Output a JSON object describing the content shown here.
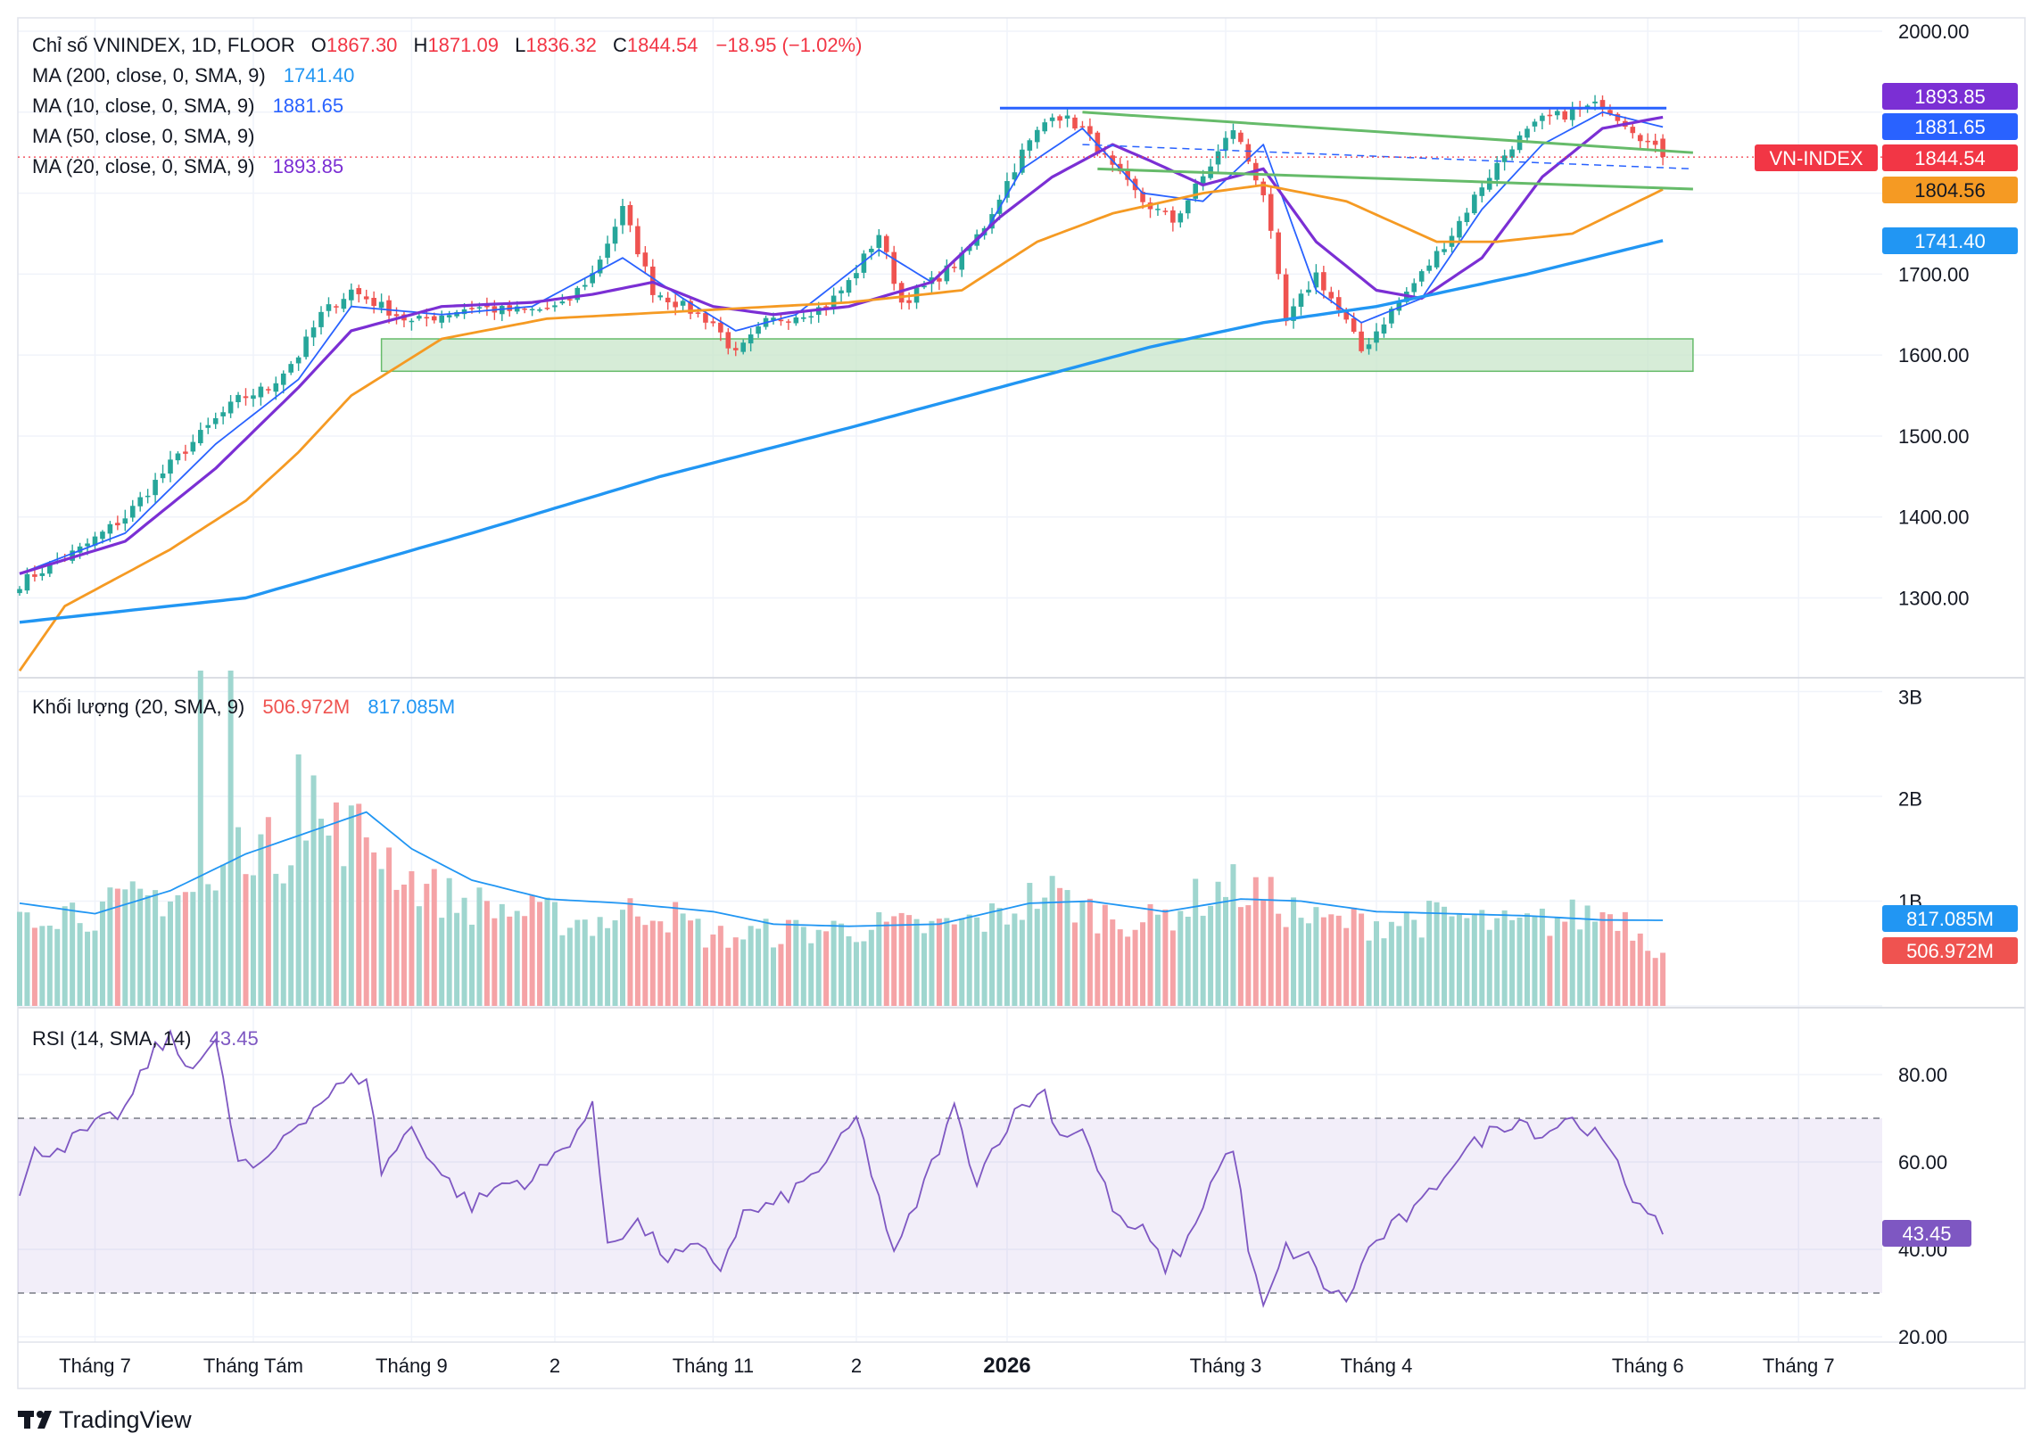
{
  "brand": {
    "logo_text": "TradingView"
  },
  "colors": {
    "up": "#26a69a",
    "down": "#ef5350",
    "vol_up": "#9fd6cf",
    "vol_down": "#f5a3a6",
    "ma10": "#2962ff",
    "ma20": "#7b2fd4",
    "ma50": "#f59a23",
    "ma200": "#2196f3",
    "vol_ma": "#2196f3",
    "rsi": "#7e57c2",
    "trend_blue": "#2962ff",
    "trend_green": "#66bb6a",
    "support_zone": "#c8e6c9",
    "vnindex_label": "#f23645",
    "last_price": "#f23645"
  },
  "legend": {
    "main": {
      "title": "Chỉ số VNINDEX, 1D, FLOOR",
      "o_label": "O",
      "o": "1867.30",
      "h_label": "H",
      "h": "1871.09",
      "l_label": "L",
      "l": "1836.32",
      "c_label": "C",
      "c": "1844.54",
      "change": "−18.95 (−1.02%)"
    },
    "ma200": {
      "label": "MA (200, close, 0, SMA, 9)",
      "value": "1741.40"
    },
    "ma10": {
      "label": "MA (10, close, 0, SMA, 9)",
      "value": "1881.65"
    },
    "ma50": {
      "label": "MA (50, close, 0, SMA, 9)"
    },
    "ma20": {
      "label": "MA (20, close, 0, SMA, 9)",
      "value": "1893.85"
    },
    "volume": {
      "label": "Khối lượng (20, SMA, 9)",
      "value1": "506.972M",
      "value2": "817.085M"
    },
    "rsi": {
      "label": "RSI (14, SMA, 14)",
      "value": "43.45"
    }
  },
  "price_tags": {
    "ma20": "1893.85",
    "ma10": "1881.65",
    "vnindex_name": "VN-INDEX",
    "last": "1844.54",
    "ma50": "1804.56",
    "ma200": "1741.40"
  },
  "volume_tags": {
    "ma": "817.085M",
    "last": "506.972M"
  },
  "rsi_tag": "43.45",
  "chart_data": [
    {
      "type": "candlestick",
      "pane": "price",
      "series_name": "VNINDEX",
      "y_ticks": [
        "2000.00",
        "1700.00",
        "1600.00",
        "1500.00",
        "1400.00",
        "1300.00"
      ],
      "ylim": [
        1210,
        2010
      ],
      "x_labels": [
        "Tháng 7",
        "Tháng Tám",
        "Tháng 9",
        "2",
        "Tháng 11",
        "2",
        "2026",
        "Tháng 3",
        "Tháng 4",
        "Tháng 6",
        "Tháng 7"
      ],
      "x_label_bars": [
        10,
        31,
        52,
        71,
        92,
        111,
        131,
        160,
        180,
        216,
        236
      ],
      "close_anchors": [
        [
          0,
          1318
        ],
        [
          4,
          1340
        ],
        [
          8,
          1360
        ],
        [
          14,
          1400
        ],
        [
          20,
          1465
        ],
        [
          26,
          1520
        ],
        [
          29,
          1545
        ],
        [
          33,
          1560
        ],
        [
          37,
          1600
        ],
        [
          40,
          1650
        ],
        [
          44,
          1680
        ],
        [
          48,
          1660
        ],
        [
          52,
          1640
        ],
        [
          56,
          1650
        ],
        [
          60,
          1660
        ],
        [
          64,
          1655
        ],
        [
          68,
          1655
        ],
        [
          72,
          1660
        ],
        [
          76,
          1700
        ],
        [
          80,
          1780
        ],
        [
          84,
          1680
        ],
        [
          88,
          1660
        ],
        [
          92,
          1640
        ],
        [
          95,
          1600
        ],
        [
          99,
          1640
        ],
        [
          103,
          1650
        ],
        [
          107,
          1660
        ],
        [
          110,
          1690
        ],
        [
          114,
          1750
        ],
        [
          117,
          1665
        ],
        [
          121,
          1690
        ],
        [
          125,
          1720
        ],
        [
          128,
          1760
        ],
        [
          133,
          1850
        ],
        [
          137,
          1900
        ],
        [
          141,
          1880
        ],
        [
          145,
          1830
        ],
        [
          149,
          1790
        ],
        [
          153,
          1765
        ],
        [
          157,
          1820
        ],
        [
          161,
          1880
        ],
        [
          165,
          1800
        ],
        [
          168,
          1640
        ],
        [
          172,
          1700
        ],
        [
          176,
          1640
        ],
        [
          178,
          1605
        ],
        [
          182,
          1655
        ],
        [
          186,
          1700
        ],
        [
          190,
          1750
        ],
        [
          194,
          1810
        ],
        [
          198,
          1860
        ],
        [
          202,
          1890
        ],
        [
          206,
          1900
        ],
        [
          210,
          1910
        ],
        [
          214,
          1880
        ],
        [
          218,
          1844.54
        ]
      ],
      "moving_averages": [
        {
          "name": "MA 10",
          "anchors": [
            [
              0,
              1330
            ],
            [
              14,
              1380
            ],
            [
              26,
              1490
            ],
            [
              37,
              1570
            ],
            [
              44,
              1660
            ],
            [
              56,
              1650
            ],
            [
              68,
              1660
            ],
            [
              76,
              1700
            ],
            [
              80,
              1720
            ],
            [
              88,
              1670
            ],
            [
              95,
              1630
            ],
            [
              103,
              1650
            ],
            [
              114,
              1730
            ],
            [
              121,
              1690
            ],
            [
              128,
              1750
            ],
            [
              133,
              1830
            ],
            [
              141,
              1880
            ],
            [
              149,
              1800
            ],
            [
              157,
              1790
            ],
            [
              165,
              1860
            ],
            [
              172,
              1680
            ],
            [
              178,
              1640
            ],
            [
              186,
              1670
            ],
            [
              194,
              1780
            ],
            [
              202,
              1860
            ],
            [
              210,
              1900
            ],
            [
              218,
              1881.65
            ]
          ]
        },
        {
          "name": "MA 20",
          "anchors": [
            [
              0,
              1330
            ],
            [
              14,
              1370
            ],
            [
              26,
              1460
            ],
            [
              37,
              1560
            ],
            [
              44,
              1630
            ],
            [
              56,
              1660
            ],
            [
              68,
              1665
            ],
            [
              76,
              1675
            ],
            [
              84,
              1690
            ],
            [
              92,
              1660
            ],
            [
              100,
              1650
            ],
            [
              110,
              1660
            ],
            [
              121,
              1690
            ],
            [
              130,
              1770
            ],
            [
              137,
              1820
            ],
            [
              145,
              1860
            ],
            [
              150,
              1840
            ],
            [
              157,
              1810
            ],
            [
              165,
              1830
            ],
            [
              172,
              1740
            ],
            [
              180,
              1680
            ],
            [
              186,
              1670
            ],
            [
              194,
              1720
            ],
            [
              202,
              1820
            ],
            [
              210,
              1880
            ],
            [
              218,
              1893.85
            ]
          ]
        },
        {
          "name": "MA 50",
          "anchors": [
            [
              0,
              1210
            ],
            [
              6,
              1290
            ],
            [
              20,
              1360
            ],
            [
              30,
              1420
            ],
            [
              37,
              1480
            ],
            [
              44,
              1550
            ],
            [
              56,
              1620
            ],
            [
              70,
              1645
            ],
            [
              90,
              1655
            ],
            [
              110,
              1665
            ],
            [
              125,
              1680
            ],
            [
              135,
              1740
            ],
            [
              145,
              1775
            ],
            [
              157,
              1800
            ],
            [
              165,
              1810
            ],
            [
              176,
              1790
            ],
            [
              188,
              1740
            ],
            [
              196,
              1740
            ],
            [
              206,
              1750
            ],
            [
              218,
              1804.56
            ]
          ]
        },
        {
          "name": "MA 200",
          "anchors": [
            [
              0,
              1270
            ],
            [
              30,
              1300
            ],
            [
              60,
              1380
            ],
            [
              85,
              1450
            ],
            [
              110,
              1510
            ],
            [
              130,
              1560
            ],
            [
              150,
              1610
            ],
            [
              165,
              1640
            ],
            [
              180,
              1660
            ],
            [
              200,
              1700
            ],
            [
              218,
              1741.4
            ]
          ]
        }
      ],
      "annotations": [
        {
          "type": "horizontal-line",
          "y": 1905,
          "from_bar": 131,
          "to_bar": 218
        },
        {
          "type": "channel-line",
          "from": [
            141,
            1900
          ],
          "to": [
            222,
            1850
          ]
        },
        {
          "type": "channel-line",
          "from": [
            143,
            1830
          ],
          "to": [
            222,
            1805
          ]
        },
        {
          "type": "dashed-line",
          "from": [
            141,
            1860
          ],
          "to": [
            222,
            1830
          ]
        },
        {
          "type": "zone",
          "y_range": [
            1580,
            1620
          ],
          "from_bar": 48,
          "to_bar": 222
        }
      ]
    },
    {
      "type": "bar",
      "pane": "volume",
      "y_ticks": [
        "3B",
        "2B",
        "1B"
      ],
      "ylim": [
        0,
        3.2
      ],
      "unit": "B",
      "volume_anchors": [
        [
          0,
          0.95
        ],
        [
          10,
          0.9
        ],
        [
          18,
          1.05
        ],
        [
          26,
          1.1
        ],
        [
          30,
          1.6
        ],
        [
          34,
          1.45
        ],
        [
          40,
          1.7
        ],
        [
          46,
          1.65
        ],
        [
          52,
          1.2
        ],
        [
          58,
          1.0
        ],
        [
          66,
          0.9
        ],
        [
          76,
          0.8
        ],
        [
          84,
          0.95
        ],
        [
          92,
          0.65
        ],
        [
          100,
          0.7
        ],
        [
          112,
          0.75
        ],
        [
          122,
          0.75
        ],
        [
          130,
          0.85
        ],
        [
          136,
          1.1
        ],
        [
          142,
          0.9
        ],
        [
          150,
          0.8
        ],
        [
          160,
          1.15
        ],
        [
          165,
          1.05
        ],
        [
          172,
          0.8
        ],
        [
          180,
          0.8
        ],
        [
          190,
          0.85
        ],
        [
          198,
          0.75
        ],
        [
          206,
          0.85
        ],
        [
          212,
          0.9
        ],
        [
          218,
          0.507
        ]
      ],
      "volume_ma_anchors": [
        [
          0,
          0.98
        ],
        [
          10,
          0.88
        ],
        [
          20,
          1.1
        ],
        [
          30,
          1.45
        ],
        [
          40,
          1.7
        ],
        [
          46,
          1.85
        ],
        [
          52,
          1.5
        ],
        [
          60,
          1.2
        ],
        [
          70,
          1.02
        ],
        [
          80,
          0.98
        ],
        [
          92,
          0.9
        ],
        [
          100,
          0.78
        ],
        [
          110,
          0.76
        ],
        [
          122,
          0.78
        ],
        [
          134,
          0.98
        ],
        [
          142,
          1.0
        ],
        [
          152,
          0.9
        ],
        [
          162,
          1.02
        ],
        [
          170,
          1.0
        ],
        [
          180,
          0.9
        ],
        [
          190,
          0.88
        ],
        [
          200,
          0.86
        ],
        [
          210,
          0.82
        ],
        [
          218,
          0.817
        ]
      ]
    },
    {
      "type": "line",
      "pane": "rsi",
      "y_ticks": [
        "80.00",
        "60.00",
        "40.00",
        "20.00"
      ],
      "ylim": [
        20,
        92
      ],
      "band": [
        30,
        70
      ],
      "rsi_anchors": [
        [
          0,
          52
        ],
        [
          2,
          62
        ],
        [
          6,
          64
        ],
        [
          10,
          68
        ],
        [
          14,
          72
        ],
        [
          18,
          86
        ],
        [
          20,
          88
        ],
        [
          22,
          82
        ],
        [
          26,
          87
        ],
        [
          29,
          60
        ],
        [
          32,
          58
        ],
        [
          35,
          66
        ],
        [
          40,
          74
        ],
        [
          43,
          78
        ],
        [
          46,
          80
        ],
        [
          48,
          58
        ],
        [
          52,
          68
        ],
        [
          56,
          57
        ],
        [
          60,
          50
        ],
        [
          64,
          55
        ],
        [
          68,
          56
        ],
        [
          72,
          63
        ],
        [
          76,
          72
        ],
        [
          78,
          42
        ],
        [
          82,
          46
        ],
        [
          86,
          38
        ],
        [
          90,
          40
        ],
        [
          93,
          36
        ],
        [
          96,
          48
        ],
        [
          100,
          50
        ],
        [
          104,
          55
        ],
        [
          108,
          62
        ],
        [
          111,
          70
        ],
        [
          114,
          52
        ],
        [
          116,
          38
        ],
        [
          120,
          55
        ],
        [
          124,
          72
        ],
        [
          127,
          56
        ],
        [
          130,
          66
        ],
        [
          133,
          73
        ],
        [
          136,
          76
        ],
        [
          138,
          66
        ],
        [
          141,
          68
        ],
        [
          143,
          58
        ],
        [
          146,
          46
        ],
        [
          149,
          44
        ],
        [
          152,
          36
        ],
        [
          155,
          42
        ],
        [
          158,
          55
        ],
        [
          161,
          64
        ],
        [
          163,
          40
        ],
        [
          165,
          26
        ],
        [
          168,
          40
        ],
        [
          171,
          38
        ],
        [
          173,
          32
        ],
        [
          176,
          28
        ],
        [
          179,
          40
        ],
        [
          182,
          45
        ],
        [
          186,
          50
        ],
        [
          190,
          60
        ],
        [
          193,
          64
        ],
        [
          196,
          68
        ],
        [
          199,
          70
        ],
        [
          202,
          66
        ],
        [
          205,
          70
        ],
        [
          208,
          68
        ],
        [
          211,
          62
        ],
        [
          214,
          52
        ],
        [
          216,
          50
        ],
        [
          218,
          43.45
        ]
      ]
    }
  ]
}
